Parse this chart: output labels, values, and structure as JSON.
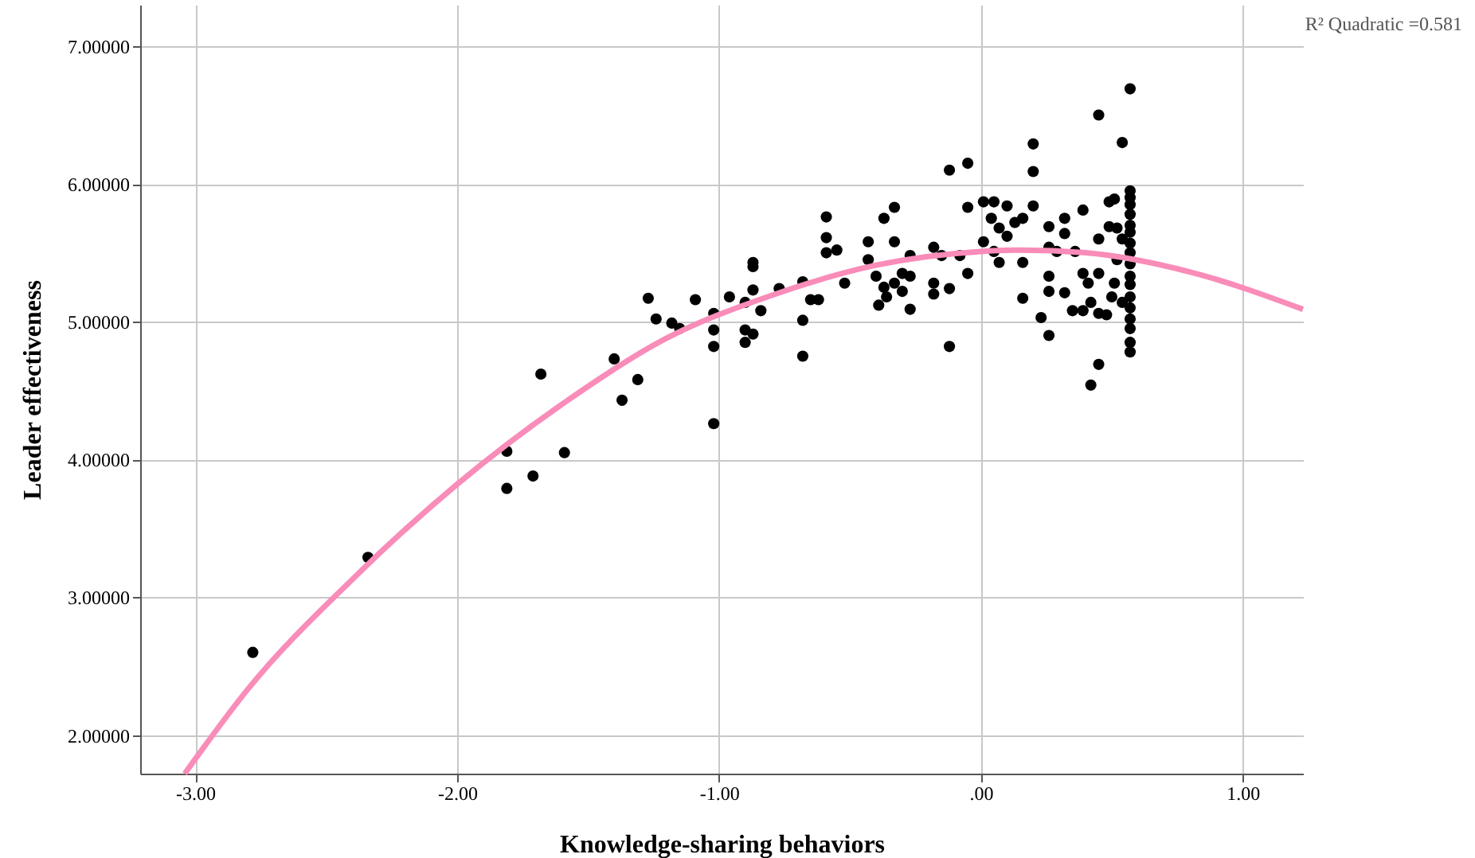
{
  "chart_data": {
    "type": "scatter",
    "xlabel": "Knowledge-sharing behaviors",
    "ylabel": "Leader effectiveness",
    "annotations": [
      "R² Quadratic =0.581"
    ],
    "xlim": [
      -3.21,
      1.23
    ],
    "ylim": [
      1.72,
      7.3
    ],
    "xticks": [
      {
        "value": -3,
        "label": "-3.00"
      },
      {
        "value": -2,
        "label": "-2.00"
      },
      {
        "value": -1,
        "label": "-1.00"
      },
      {
        "value": 0,
        "label": ".00"
      },
      {
        "value": 1,
        "label": "1.00"
      }
    ],
    "yticks": [
      {
        "value": 2,
        "label": "2.00000"
      },
      {
        "value": 3,
        "label": "3.00000"
      },
      {
        "value": 4,
        "label": "4.00000"
      },
      {
        "value": 5,
        "label": "5.00000"
      },
      {
        "value": 6,
        "label": "6.00000"
      },
      {
        "value": 7,
        "label": "7.00000"
      }
    ],
    "grid": true,
    "series": [
      {
        "marker": "circle",
        "color": "#000000",
        "x": [
          -2.78,
          -2.34,
          -1.81,
          -1.81,
          -1.71,
          -1.68,
          -1.59,
          -1.4,
          -1.37,
          -1.31,
          -1.27,
          -1.24,
          -1.18,
          -1.15,
          -1.09,
          -1.02,
          -1.02,
          -1.02,
          -1.02,
          -0.96,
          -0.9,
          -0.87,
          -0.87,
          -0.87,
          -0.9,
          -0.9,
          -0.87,
          -0.84,
          -0.77,
          -0.68,
          -0.68,
          -0.68,
          -0.65,
          -0.62,
          -0.59,
          -0.59,
          -0.59,
          -0.55,
          -0.52,
          -0.43,
          -0.43,
          -0.4,
          -0.37,
          -0.33,
          -0.33,
          -0.37,
          -0.36,
          -0.39,
          -0.33,
          -0.3,
          -0.27,
          -0.27,
          -0.27,
          -0.3,
          -0.18,
          -0.18,
          -0.18,
          -0.15,
          -0.12,
          -0.12,
          -0.12,
          -0.05,
          -0.05,
          -0.08,
          -0.05,
          0.01,
          0.57,
          0.45,
          0.54,
          0.2,
          0.2,
          0.01,
          0.05,
          0.1,
          0.04,
          0.07,
          0.13,
          0.16,
          0.2,
          0.1,
          0.05,
          0.07,
          0.16,
          0.16,
          0.26,
          0.26,
          0.23,
          0.26,
          0.26,
          0.26,
          0.29,
          0.32,
          0.32,
          0.32,
          0.36,
          0.35,
          0.39,
          0.39,
          0.39,
          0.41,
          0.42,
          0.45,
          0.45,
          0.45,
          0.42,
          0.45,
          0.48,
          0.49,
          0.51,
          0.51,
          0.5,
          0.49,
          0.52,
          0.54,
          0.52,
          0.54,
          0.57,
          0.57,
          0.57,
          0.57,
          0.57,
          0.57,
          0.57,
          0.57,
          0.57,
          0.57,
          0.57,
          0.57,
          0.57,
          0.57,
          0.57,
          0.57,
          0.57
        ],
        "values": [
          2.6,
          3.29,
          4.06,
          3.79,
          3.88,
          4.62,
          4.05,
          4.73,
          4.43,
          4.58,
          5.17,
          5.02,
          4.99,
          4.95,
          5.16,
          5.06,
          4.94,
          4.82,
          4.26,
          5.18,
          5.14,
          5.43,
          5.4,
          5.23,
          4.94,
          4.85,
          4.91,
          5.08,
          5.24,
          5.29,
          5.01,
          4.75,
          5.16,
          5.16,
          5.76,
          5.61,
          5.5,
          5.52,
          5.28,
          5.58,
          5.45,
          5.33,
          5.75,
          5.83,
          5.58,
          5.25,
          5.18,
          5.12,
          5.28,
          5.35,
          5.48,
          5.33,
          5.09,
          5.22,
          5.54,
          5.28,
          5.2,
          5.48,
          4.82,
          5.24,
          6.1,
          6.15,
          5.83,
          5.48,
          5.35,
          5.58,
          6.69,
          6.5,
          6.3,
          6.29,
          6.09,
          5.87,
          5.87,
          5.84,
          5.75,
          5.68,
          5.72,
          5.75,
          5.84,
          5.62,
          5.51,
          5.43,
          5.43,
          5.17,
          5.69,
          5.54,
          5.03,
          4.9,
          5.33,
          5.22,
          5.51,
          5.75,
          5.64,
          5.21,
          5.51,
          5.08,
          5.81,
          5.35,
          5.08,
          5.28,
          5.14,
          5.35,
          5.06,
          4.69,
          4.54,
          5.6,
          5.05,
          5.87,
          5.89,
          5.28,
          5.18,
          5.69,
          5.68,
          5.6,
          5.45,
          5.14,
          5.95,
          5.9,
          5.85,
          5.78,
          5.7,
          5.65,
          5.57,
          5.5,
          5.42,
          5.33,
          5.27,
          5.18,
          5.1,
          5.02,
          4.95,
          4.85,
          4.78
        ]
      },
      {
        "type": "line",
        "marker": "none",
        "color": "#f98cb9",
        "x": [
          -3.04,
          -2.8,
          -2.4,
          -2.0,
          -1.6,
          -1.2,
          -0.8,
          -0.4,
          0,
          0.15,
          0.4,
          0.8,
          1.23
        ],
        "values": [
          1.72,
          2.33,
          3.13,
          3.82,
          4.4,
          4.88,
          5.19,
          5.41,
          5.51,
          5.52,
          5.5,
          5.36,
          5.09
        ]
      }
    ]
  }
}
